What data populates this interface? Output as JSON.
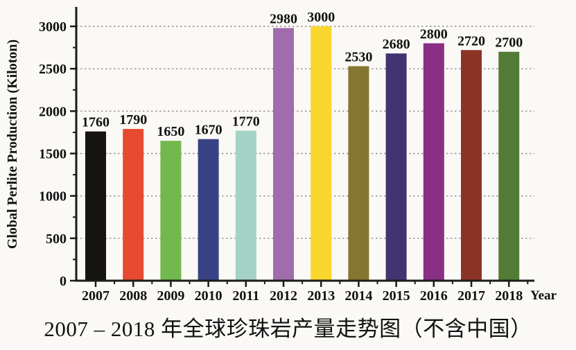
{
  "page": {
    "background": "#fbf9f6"
  },
  "caption": "2007 – 2018 年全球珍珠岩产量走势图（不含中国）",
  "chart_data": {
    "type": "bar",
    "title": "",
    "xlabel": "Year",
    "ylabel": "Global Perlite Production (Kiloton)",
    "categories": [
      "2007",
      "2008",
      "2009",
      "2010",
      "2011",
      "2012",
      "2013",
      "2014",
      "2015",
      "2016",
      "2017",
      "2018"
    ],
    "values": [
      1760,
      1790,
      1650,
      1670,
      1770,
      2980,
      3000,
      2530,
      2680,
      2800,
      2720,
      2700
    ],
    "bar_colors": [
      "#151412",
      "#e64a31",
      "#72b84c",
      "#3a4286",
      "#a4d3c6",
      "#a06cab",
      "#f9d62e",
      "#857631",
      "#413471",
      "#8a2f86",
      "#8b3425",
      "#527c36"
    ],
    "value_labels_shown": true,
    "ylim": [
      0,
      3000
    ],
    "yticks_major": [
      0,
      500,
      1000,
      1500,
      2000,
      2500,
      3000
    ],
    "yticks_minor": [
      250,
      750,
      1250,
      1750,
      2250,
      2750
    ],
    "grid": "dotted horizontal lines at major y ticks",
    "legend": "none",
    "axis_color": "#1a1a1a",
    "grid_color": "#8f8f8f",
    "text_color": "#111111"
  }
}
